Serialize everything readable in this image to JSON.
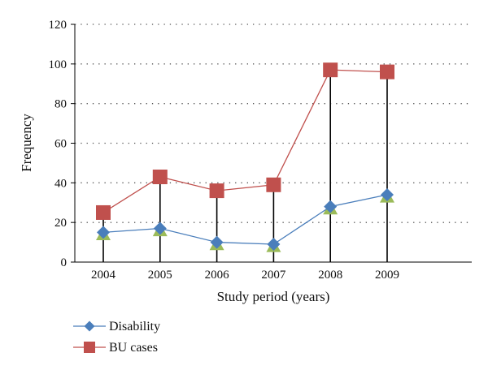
{
  "chart_data": {
    "type": "line",
    "title": "",
    "xlabel": "Study period (years)",
    "ylabel": "Frequency",
    "categories": [
      "2004",
      "2005",
      "2006",
      "2007",
      "2008",
      "2009"
    ],
    "ylim": [
      0,
      120
    ],
    "yticks": [
      0,
      20,
      40,
      60,
      80,
      100,
      120
    ],
    "grid": "horizontal-dotted",
    "legend_position": "bottom-left",
    "series": [
      {
        "name": "Disability",
        "values": [
          15,
          17,
          10,
          9,
          28,
          34
        ],
        "color": "#4a7ebb",
        "marker": "diamond"
      },
      {
        "name": "BU cases",
        "values": [
          25,
          43,
          36,
          39,
          97,
          96
        ],
        "color": "#c0504d",
        "marker": "square"
      },
      {
        "name": "",
        "values": [
          14,
          16,
          9,
          8,
          27,
          33
        ],
        "color": "#9bbb59",
        "marker": "triangle"
      }
    ],
    "drop_lines": {
      "color": "#000000",
      "from_series": 1
    }
  }
}
